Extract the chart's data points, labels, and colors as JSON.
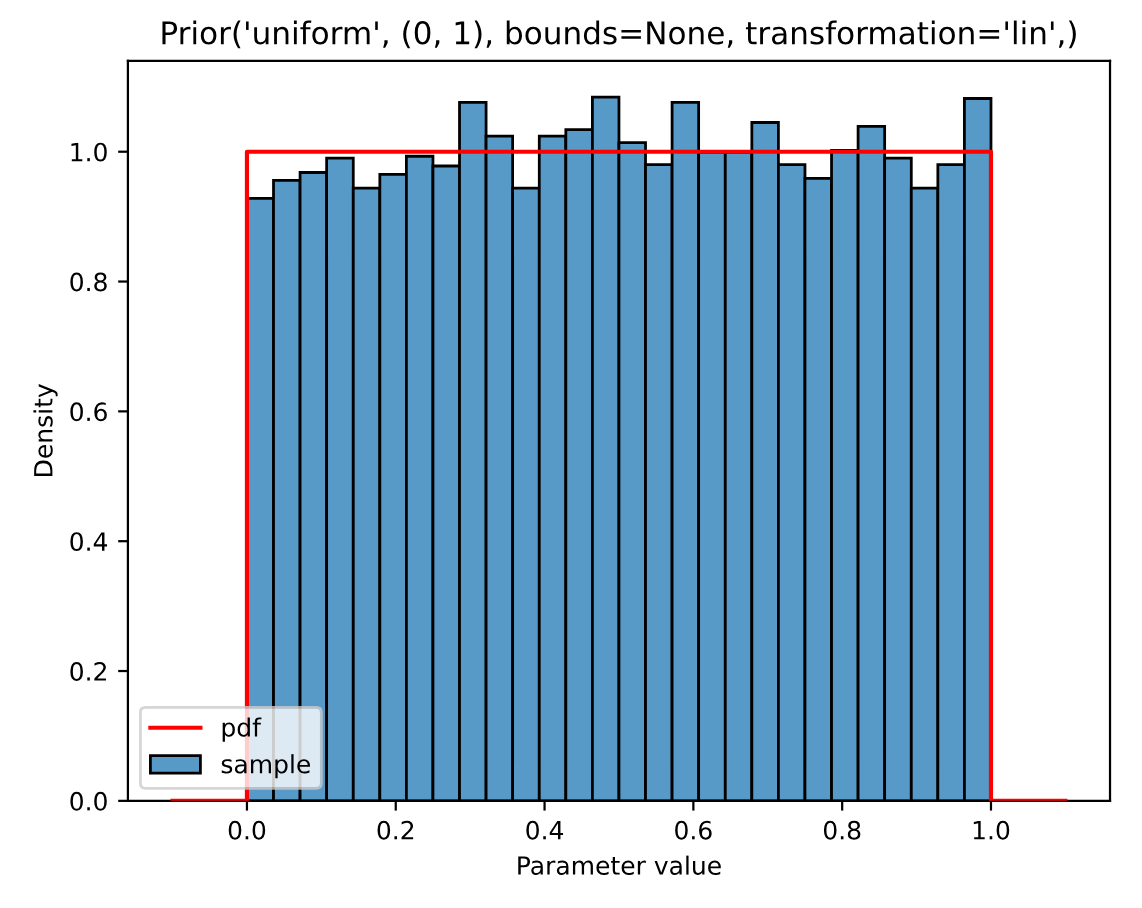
{
  "chart_data": {
    "type": "histogram",
    "title": "Prior('uniform', (0, 1), bounds=None, transformation='lin',)",
    "xlabel": "Parameter value",
    "ylabel": "Density",
    "bins": [
      0,
      0.0357,
      0.0714,
      0.1071,
      0.1429,
      0.1786,
      0.2143,
      0.25,
      0.2857,
      0.3214,
      0.3571,
      0.3929,
      0.4286,
      0.4643,
      0.5,
      0.5357,
      0.5714,
      0.6071,
      0.6429,
      0.6786,
      0.7143,
      0.75,
      0.7857,
      0.8214,
      0.8571,
      0.8929,
      0.9286,
      0.9643,
      1
    ],
    "series": [
      {
        "name": "pdf",
        "type": "line",
        "color": "#ff0000",
        "x": [
          -0.1,
          0,
          0,
          1,
          1,
          1.1
        ],
        "values": [
          0,
          0,
          1,
          1,
          0,
          0
        ]
      },
      {
        "name": "sample",
        "color": "#5799c7",
        "values": [
          0.928,
          0.956,
          0.968,
          0.99,
          0.944,
          0.965,
          0.993,
          0.978,
          1.076,
          1.024,
          0.944,
          1.024,
          1.034,
          1.084,
          1.014,
          0.98,
          1.076,
          0.999,
          0.999,
          1.045,
          0.98,
          0.959,
          1.002,
          1.039,
          0.99,
          0.944,
          0.98,
          1.082
        ]
      }
    ],
    "xlim": [
      -0.16,
      1.16
    ],
    "ylim": [
      0,
      1.14
    ],
    "xticks": [
      {
        "value": 0,
        "label": "0.0"
      },
      {
        "value": 0.2,
        "label": "0.2"
      },
      {
        "value": 0.4,
        "label": "0.4"
      },
      {
        "value": 0.6,
        "label": "0.6"
      },
      {
        "value": 0.8,
        "label": "0.8"
      },
      {
        "value": 1,
        "label": "1.0"
      }
    ],
    "yticks": [
      {
        "value": 0,
        "label": "0.0"
      },
      {
        "value": 0.2,
        "label": "0.2"
      },
      {
        "value": 0.4,
        "label": "0.4"
      },
      {
        "value": 0.6,
        "label": "0.6"
      },
      {
        "value": 0.8,
        "label": "0.8"
      },
      {
        "value": 1,
        "label": "1.0"
      }
    ],
    "grid": false,
    "legend": "bottom left"
  }
}
